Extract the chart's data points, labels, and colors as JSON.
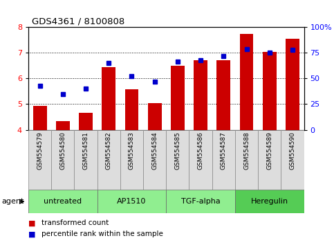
{
  "title": "GDS4361 / 8100808",
  "categories": [
    "GSM554579",
    "GSM554580",
    "GSM554581",
    "GSM554582",
    "GSM554583",
    "GSM554584",
    "GSM554585",
    "GSM554586",
    "GSM554587",
    "GSM554588",
    "GSM554589",
    "GSM554590"
  ],
  "red_values": [
    4.93,
    4.35,
    4.67,
    6.45,
    5.58,
    5.05,
    6.48,
    6.72,
    6.72,
    7.73,
    7.03,
    7.55
  ],
  "blue_values": [
    5.72,
    5.38,
    5.6,
    6.6,
    6.1,
    5.87,
    6.65,
    6.7,
    6.87,
    7.15,
    7.0,
    7.12
  ],
  "ylim_left": [
    4,
    8
  ],
  "ylim_right": [
    0,
    100
  ],
  "yticks_left": [
    4,
    5,
    6,
    7,
    8
  ],
  "yticks_right": [
    0,
    25,
    50,
    75,
    100
  ],
  "ytick_labels_right": [
    "0",
    "25",
    "50",
    "75",
    "100%"
  ],
  "group_labels": [
    "untreated",
    "AP1510",
    "TGF-alpha",
    "Heregulin"
  ],
  "group_ranges": [
    [
      0,
      3
    ],
    [
      3,
      6
    ],
    [
      6,
      9
    ],
    [
      9,
      12
    ]
  ],
  "group_colors": [
    "#aaffaa",
    "#aaffaa",
    "#66ee66",
    "#44dd44"
  ],
  "bar_color": "#CC0000",
  "dot_color": "#0000CC",
  "bar_bottom": 4,
  "legend_red": "transformed count",
  "legend_blue": "percentile rank within the sample",
  "bar_width": 0.6
}
